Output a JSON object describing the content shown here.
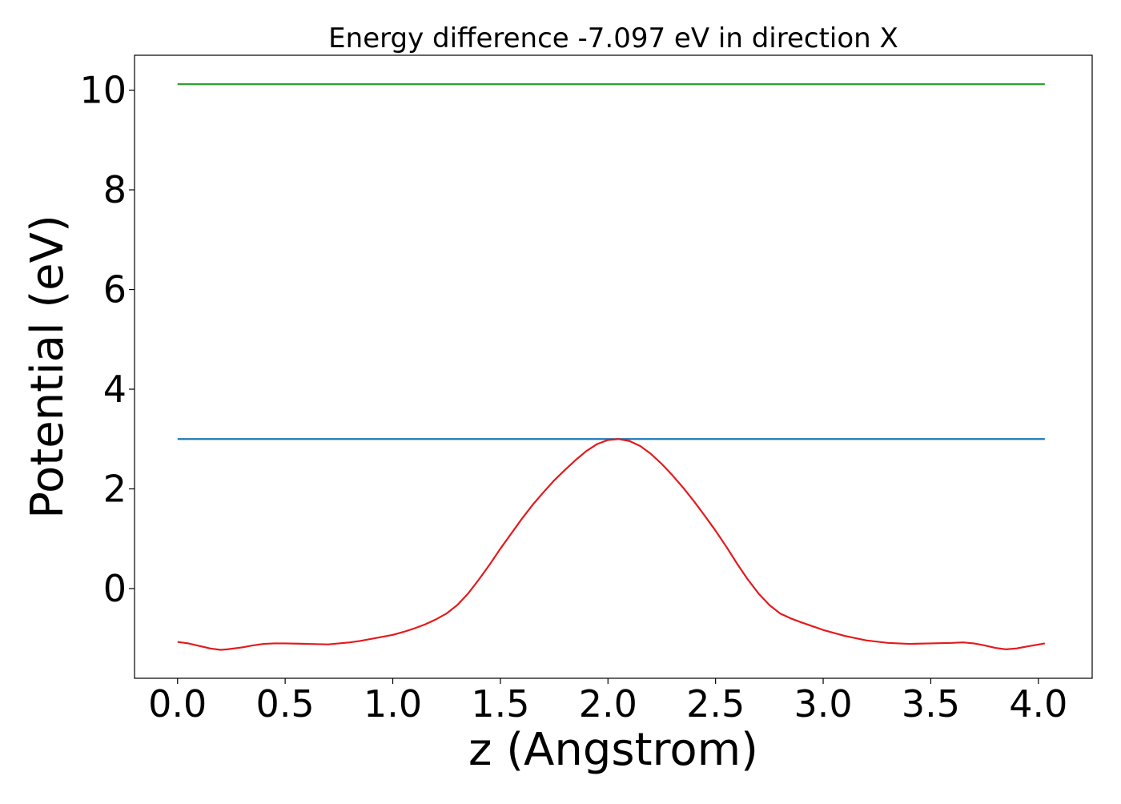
{
  "chart_data": {
    "type": "line",
    "title": "Energy difference -7.097 eV in direction X",
    "xlabel": "z (Angstrom)",
    "ylabel": "Potential (eV)",
    "xlim": [
      -0.2,
      4.25
    ],
    "ylim": [
      -1.8,
      10.7
    ],
    "grid": false,
    "legend": "none",
    "xticks": [
      0.0,
      0.5,
      1.0,
      1.5,
      2.0,
      2.5,
      3.0,
      3.5,
      4.0
    ],
    "xtick_labels": [
      "0.0",
      "0.5",
      "1.0",
      "1.5",
      "2.0",
      "2.5",
      "3.0",
      "3.5",
      "4.0"
    ],
    "yticks": [
      0,
      2,
      4,
      6,
      8,
      10
    ],
    "ytick_labels": [
      "0",
      "2",
      "4",
      "6",
      "8",
      "10"
    ],
    "series": [
      {
        "color": "#2ca02c",
        "x": [
          0.0,
          4.03
        ],
        "y": [
          10.12,
          10.12
        ]
      },
      {
        "color": "#1f77b4",
        "x": [
          0.0,
          4.03
        ],
        "y": [
          3.0,
          3.0
        ]
      },
      {
        "color": "#e31a1c",
        "x": [
          0.0,
          0.05,
          0.1,
          0.15,
          0.2,
          0.23,
          0.3,
          0.35,
          0.4,
          0.45,
          0.5,
          0.6,
          0.7,
          0.8,
          0.85,
          0.9,
          1.0,
          1.05,
          1.1,
          1.15,
          1.2,
          1.25,
          1.3,
          1.35,
          1.4,
          1.45,
          1.5,
          1.55,
          1.6,
          1.65,
          1.7,
          1.75,
          1.8,
          1.85,
          1.9,
          1.95,
          2.0,
          2.05,
          2.1,
          2.15,
          2.2,
          2.25,
          2.3,
          2.35,
          2.4,
          2.45,
          2.5,
          2.55,
          2.6,
          2.65,
          2.7,
          2.75,
          2.8,
          2.85,
          2.9,
          3.0,
          3.1,
          3.2,
          3.3,
          3.4,
          3.5,
          3.6,
          3.65,
          3.7,
          3.75,
          3.8,
          3.85,
          3.9,
          3.95,
          4.03
        ],
        "y": [
          -1.07,
          -1.1,
          -1.15,
          -1.2,
          -1.23,
          -1.22,
          -1.18,
          -1.14,
          -1.11,
          -1.1,
          -1.1,
          -1.11,
          -1.12,
          -1.08,
          -1.05,
          -1.01,
          -0.93,
          -0.87,
          -0.8,
          -0.72,
          -0.62,
          -0.5,
          -0.33,
          -0.1,
          0.18,
          0.48,
          0.8,
          1.1,
          1.4,
          1.68,
          1.93,
          2.17,
          2.38,
          2.58,
          2.76,
          2.9,
          2.98,
          3.0,
          2.96,
          2.86,
          2.7,
          2.5,
          2.27,
          2.02,
          1.75,
          1.46,
          1.16,
          0.84,
          0.5,
          0.18,
          -0.1,
          -0.33,
          -0.5,
          -0.6,
          -0.68,
          -0.83,
          -0.95,
          -1.04,
          -1.09,
          -1.11,
          -1.1,
          -1.09,
          -1.08,
          -1.1,
          -1.14,
          -1.19,
          -1.22,
          -1.2,
          -1.16,
          -1.1
        ]
      }
    ]
  }
}
